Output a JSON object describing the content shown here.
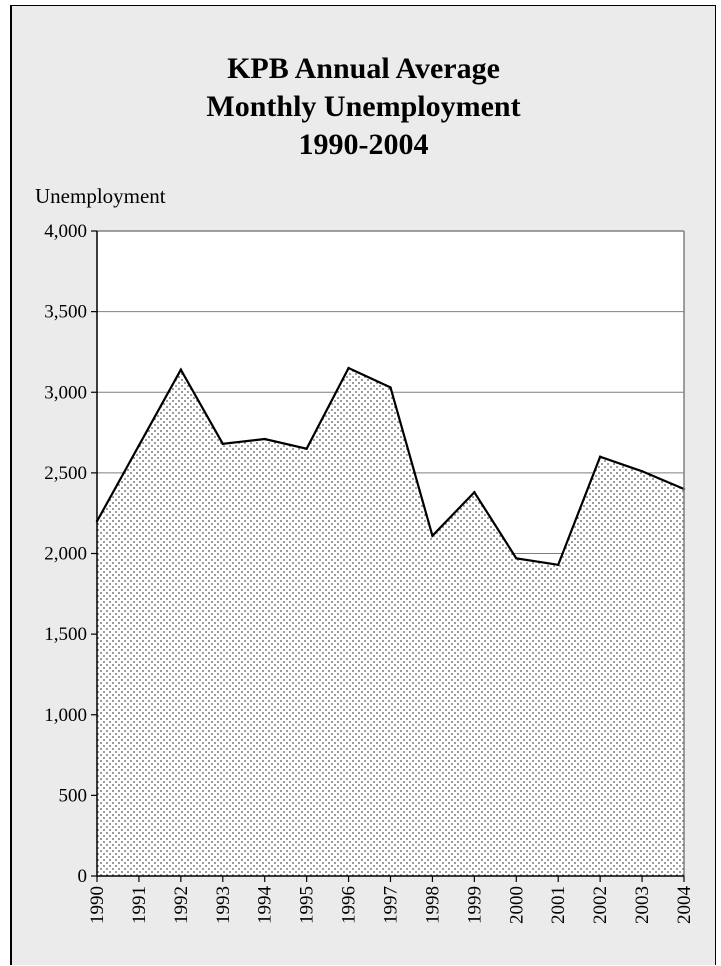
{
  "chart_data": {
    "type": "area",
    "title_lines": [
      "KPB Annual Average",
      "Monthly Unemployment",
      "1990-2004"
    ],
    "ylabel": "Unemployment",
    "xlabel": "",
    "categories": [
      "1990",
      "1991",
      "1992",
      "1993",
      "1994",
      "1995",
      "1996",
      "1997",
      "1998",
      "1999",
      "2000",
      "2001",
      "2002",
      "2003",
      "2004"
    ],
    "values": [
      2200,
      2670,
      3140,
      2680,
      2710,
      2650,
      3150,
      3030,
      2110,
      2380,
      1970,
      1930,
      2600,
      2510,
      2400
    ],
    "ylim": [
      0,
      4000
    ],
    "yticks": [
      "4,000",
      "3,500",
      "3,000",
      "2,500",
      "2,000",
      "1,500",
      "1,000",
      "500",
      "0"
    ],
    "ytick_values": [
      4000,
      3500,
      3000,
      2500,
      2000,
      1500,
      1000,
      500,
      0
    ],
    "grid": true,
    "legend": "none",
    "colors": {
      "background": "#ebebeb",
      "plot_area": "#ffffff",
      "line": "#000000",
      "fill_dots": "#555555",
      "grid": "#7f7f7f"
    }
  }
}
